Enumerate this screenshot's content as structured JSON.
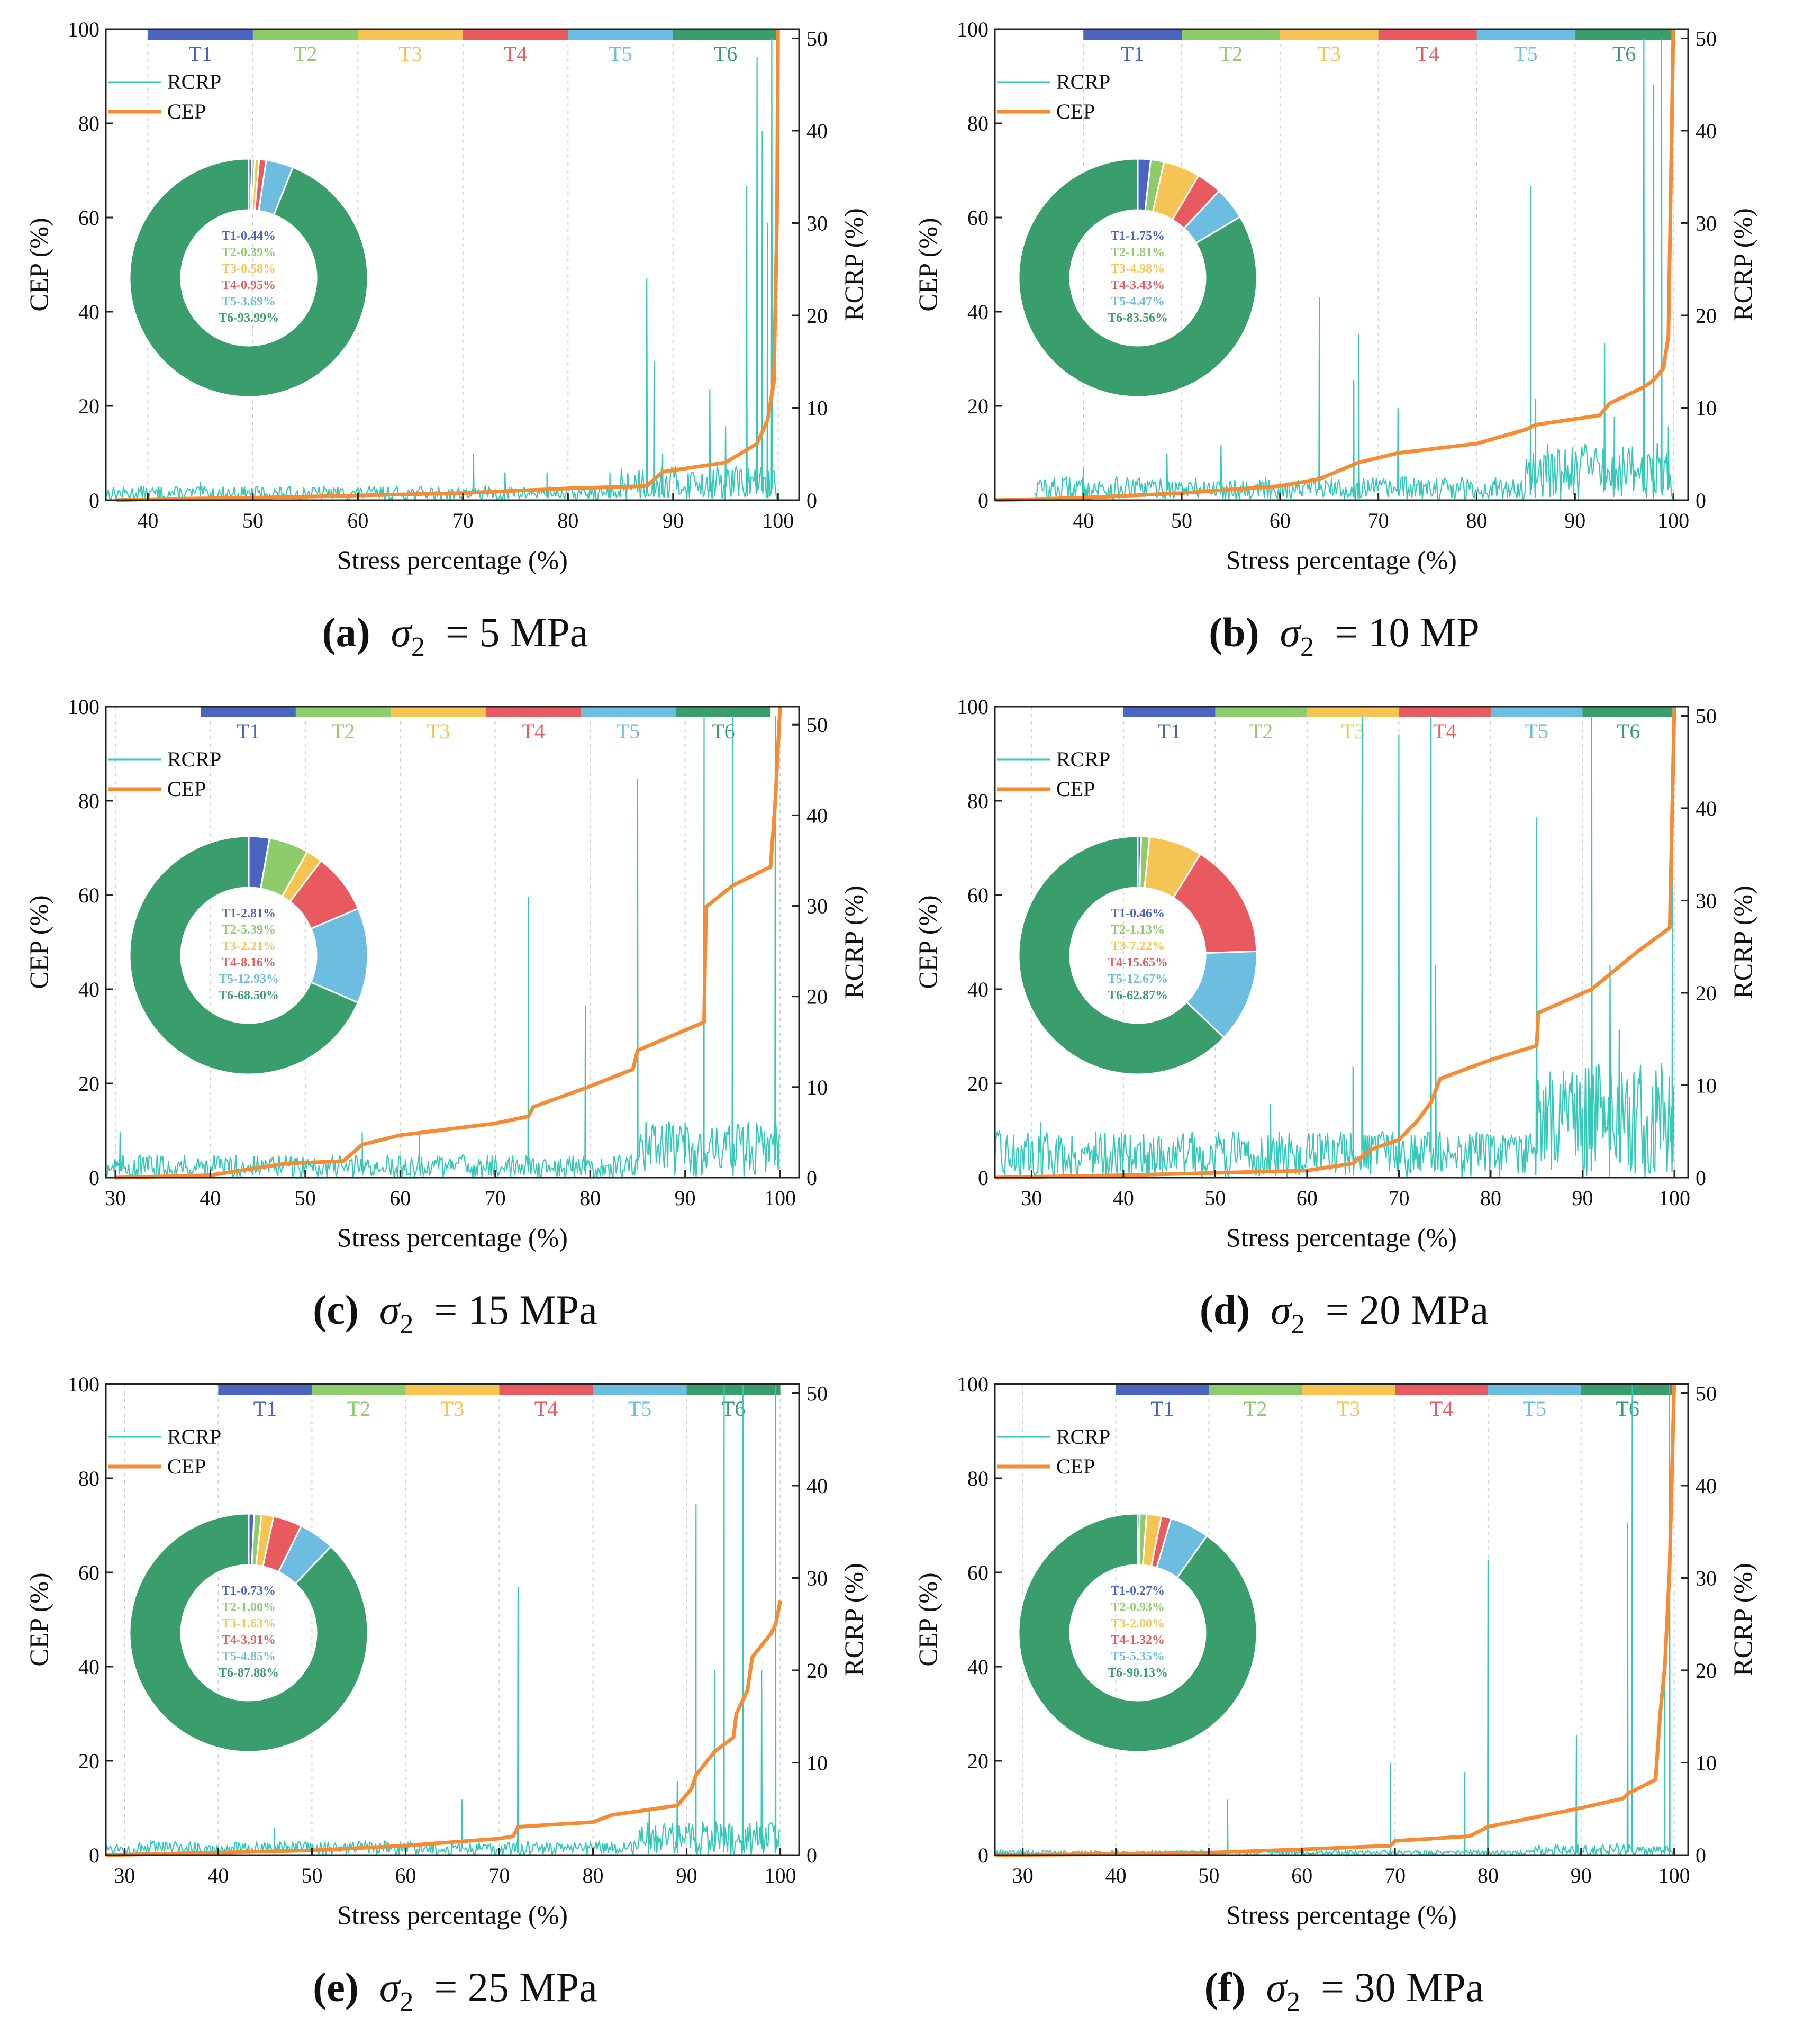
{
  "common": {
    "xlabel": "Stress percentage (%)",
    "ylabel_left": "CEP (%)",
    "ylabel_right": "RCRP (%)",
    "legend": [
      "RCRP",
      "CEP"
    ],
    "stage_labels": [
      "T1",
      "T2",
      "T3",
      "T4",
      "T5",
      "T6"
    ],
    "caption_symbol": "σ",
    "caption_subscript": "2",
    "colors": {
      "T1": "#4a64c0",
      "T2": "#8ecb6a",
      "T3": "#f6c453",
      "T4": "#e85a5f",
      "T5": "#6dbde0",
      "T6": "#3a9e6c",
      "RCRP": "#35c9b7",
      "CEP": "#f78b34"
    }
  },
  "panels": [
    {
      "letter": "(a)",
      "caption_value": "= 5 MPa",
      "pie_labels": [
        "T1-0.44%",
        "T2-0.39%",
        "T3-0.58%",
        "T4-0.95%",
        "T5-3.69%",
        "T6-93.99%"
      ],
      "chart_data": {
        "type": "line",
        "title": "",
        "xlabel": "Stress percentage (%)",
        "ylabel": "CEP (%)",
        "ylabel2": "RCRP (%)",
        "xlim": [
          36,
          102
        ],
        "ylim": [
          0,
          100
        ],
        "y2lim": [
          0,
          51
        ],
        "xticks": [
          40,
          50,
          60,
          70,
          80,
          90,
          100
        ],
        "stage_bounds": [
          40,
          50,
          60,
          70,
          80,
          90,
          100
        ],
        "pie": {
          "labels": [
            "T1",
            "T2",
            "T3",
            "T4",
            "T5",
            "T6"
          ],
          "values": [
            0.44,
            0.39,
            0.58,
            0.95,
            3.69,
            93.99
          ]
        },
        "series": [
          {
            "name": "CEP",
            "axis": "left",
            "x": [
              37,
              40,
              50,
              60,
              70,
              80,
              87.5,
              89,
              95,
              98,
              99,
              99.6,
              99.9,
              100
            ],
            "y": [
              0,
              0.2,
              0.5,
              1,
              1.5,
              2.5,
              3,
              6,
              8,
              12,
              17,
              25,
              60,
              100
            ]
          },
          {
            "name": "RCRP",
            "axis": "right",
            "base_range": [
              0,
              1.5
            ],
            "spikes": [
              [
                41,
                1.5
              ],
              [
                45,
                2
              ],
              [
                71,
                5
              ],
              [
                74,
                3
              ],
              [
                78,
                3
              ],
              [
                84,
                3
              ],
              [
                87.5,
                24
              ],
              [
                88.2,
                15
              ],
              [
                89,
                5
              ],
              [
                93.5,
                12
              ],
              [
                95,
                8
              ],
              [
                97,
                34
              ],
              [
                98,
                48
              ],
              [
                98.5,
                40
              ],
              [
                99,
                30
              ],
              [
                99.4,
                50
              ]
            ]
          }
        ]
      }
    },
    {
      "letter": "(b)",
      "caption_value": "= 10 MP",
      "pie_labels": [
        "T1-1.75%",
        "T2-1.81%",
        "T3-4.98%",
        "T4-3.43%",
        "T5-4.47%",
        "T6-83.56%"
      ],
      "chart_data": {
        "type": "line",
        "title": "",
        "xlabel": "Stress percentage (%)",
        "ylabel": "CEP (%)",
        "ylabel2": "RCRP (%)",
        "xlim": [
          31,
          101.5
        ],
        "ylim": [
          0,
          100
        ],
        "y2lim": [
          0,
          51
        ],
        "xticks": [
          40,
          50,
          60,
          70,
          80,
          90,
          100
        ],
        "stage_bounds": [
          40,
          50,
          60,
          70,
          80,
          90,
          100
        ],
        "pie": {
          "labels": [
            "T1",
            "T2",
            "T3",
            "T4",
            "T5",
            "T6"
          ],
          "values": [
            1.75,
            1.81,
            4.98,
            3.43,
            4.47,
            83.56
          ]
        },
        "series": [
          {
            "name": "CEP",
            "axis": "left",
            "x": [
              31,
              40,
              50,
              60,
              64,
              68,
              72,
              80,
              85,
              86,
              92.5,
              93.5,
              97,
              98,
              99,
              99.5,
              100
            ],
            "y": [
              0,
              0.5,
              1.5,
              3,
              4.5,
              8,
              10,
              12,
              15,
              16,
              18,
              20.5,
              24,
              25.5,
              28,
              35,
              100
            ]
          },
          {
            "name": "RCRP",
            "axis": "right",
            "base_range": [
              0,
              2.5
            ],
            "spikes": [
              [
                40,
                3.5
              ],
              [
                48.5,
                5
              ],
              [
                54,
                6
              ],
              [
                64,
                22
              ],
              [
                67.5,
                13
              ],
              [
                68,
                18
              ],
              [
                72,
                10
              ],
              [
                85.5,
                34
              ],
              [
                86,
                11
              ],
              [
                93,
                17
              ],
              [
                94,
                9
              ],
              [
                97,
                50
              ],
              [
                98,
                45
              ],
              [
                98.8,
                50
              ],
              [
                99.5,
                8
              ]
            ]
          }
        ]
      }
    },
    {
      "letter": "(c)",
      "caption_value": "= 15 MPa",
      "pie_labels": [
        "T1-2.81%",
        "T2-5.39%",
        "T3-2.21%",
        "T4-8.16%",
        "T5-12.93%",
        "T6-68.50%"
      ],
      "chart_data": {
        "type": "line",
        "title": "",
        "xlabel": "Stress percentage (%)",
        "ylabel": "CEP (%)",
        "ylabel2": "RCRP (%)",
        "xlim": [
          29,
          102
        ],
        "ylim": [
          0,
          100
        ],
        "y2lim": [
          0,
          52
        ],
        "xticks": [
          30,
          40,
          50,
          60,
          70,
          80,
          90,
          100
        ],
        "stage_bounds": [
          39,
          49,
          59,
          69,
          79,
          89,
          99
        ],
        "pie": {
          "labels": [
            "T1",
            "T2",
            "T3",
            "T4",
            "T5",
            "T6"
          ],
          "values": [
            2.81,
            5.39,
            2.21,
            8.16,
            12.93,
            68.5
          ]
        },
        "series": [
          {
            "name": "CEP",
            "axis": "left",
            "x": [
              30,
              40,
              48,
              54,
              56,
              60,
              70,
              73.5,
              74,
              79.5,
              84.5,
              85,
              92,
              92.2,
              95,
              99,
              99.5,
              100
            ],
            "y": [
              0,
              0.5,
              3,
              3.5,
              7,
              9,
              11.5,
              13,
              15,
              19,
              23,
              27,
              33,
              57.5,
              62,
              66,
              80,
              100
            ]
          },
          {
            "name": "RCRP",
            "axis": "right",
            "base_range": [
              0,
              2.5
            ],
            "spikes": [
              [
                30.5,
                5
              ],
              [
                32,
                2
              ],
              [
                56,
                5
              ],
              [
                62,
                5
              ],
              [
                73.5,
                31
              ],
              [
                79.5,
                19
              ],
              [
                85,
                44
              ],
              [
                90,
                6
              ],
              [
                92,
                51
              ],
              [
                95,
                51
              ],
              [
                99.5,
                51
              ]
            ]
          }
        ]
      }
    },
    {
      "letter": "(d)",
      "caption_value": "= 20 MPa",
      "pie_labels": [
        "T1-0.46%",
        "T2-1.13%",
        "T3-7.22%",
        "T4-15.65%",
        "T5-12.67%",
        "T6-62.87%"
      ],
      "chart_data": {
        "type": "line",
        "title": "",
        "xlabel": "Stress percentage (%)",
        "ylabel": "CEP (%)",
        "ylabel2": "RCRP (%)",
        "xlim": [
          26,
          101.5
        ],
        "ylim": [
          0,
          100
        ],
        "y2lim": [
          0,
          51
        ],
        "xticks": [
          30,
          40,
          50,
          60,
          70,
          80,
          90,
          100
        ],
        "stage_bounds": [
          40,
          50,
          60,
          70,
          80,
          90,
          100
        ],
        "pie": {
          "labels": [
            "T1",
            "T2",
            "T3",
            "T4",
            "T5",
            "T6"
          ],
          "values": [
            0.46,
            1.13,
            7.22,
            15.65,
            12.67,
            62.87
          ]
        },
        "series": [
          {
            "name": "CEP",
            "axis": "left",
            "x": [
              26,
              40,
              50,
              60,
              65,
              67,
              70,
              72,
              73.5,
              74.5,
              80,
              85,
              85.2,
              91,
              96,
              99.5,
              100
            ],
            "y": [
              0,
              0.5,
              1,
              1.5,
              3,
              6,
              8,
              12,
              16,
              21,
              25,
              28,
              35,
              40,
              48,
              53,
              100
            ]
          },
          {
            "name": "RCRP",
            "axis": "right",
            "base_range": [
              0,
              5
            ],
            "spikes": [
              [
                31,
                6
              ],
              [
                37,
                5
              ],
              [
                56,
                8
              ],
              [
                65,
                12
              ],
              [
                66,
                50
              ],
              [
                70,
                48
              ],
              [
                73.5,
                50
              ],
              [
                74,
                23
              ],
              [
                85,
                39
              ],
              [
                91,
                50
              ],
              [
                93,
                23
              ],
              [
                94,
                16
              ],
              [
                99.8,
                51
              ]
            ]
          }
        ]
      }
    },
    {
      "letter": "(e)",
      "caption_value": "= 25 MPa",
      "pie_labels": [
        "T1-0.73%",
        "T2-1.00%",
        "T3-1.63%",
        "T4-3.91%",
        "T5-4.85%",
        "T6-87.88%"
      ],
      "chart_data": {
        "type": "line",
        "title": "",
        "xlabel": "Stress percentage (%)",
        "ylabel": "CEP (%)",
        "ylabel2": "RCRP (%)",
        "xlim": [
          28,
          102
        ],
        "ylim": [
          0,
          100
        ],
        "y2lim": [
          0,
          51
        ],
        "xticks": [
          30,
          40,
          50,
          60,
          70,
          80,
          90,
          100
        ],
        "stage_bounds": [
          40,
          50,
          60,
          70,
          80,
          90,
          100
        ],
        "pie": {
          "labels": [
            "T1",
            "T2",
            "T3",
            "T4",
            "T5",
            "T6"
          ],
          "values": [
            0.73,
            1.0,
            1.63,
            3.91,
            4.85,
            87.88
          ]
        },
        "series": [
          {
            "name": "CEP",
            "axis": "left",
            "x": [
              28,
              40,
              50,
              60,
              70,
              71.5,
              72,
              80,
              82,
              89,
              90.5,
              91,
              93,
              95,
              95.3,
              96.5,
              97,
              99,
              99.5,
              100
            ],
            "y": [
              0,
              0.5,
              1,
              2,
              3.5,
              4,
              6,
              7,
              8.5,
              10.5,
              14,
              17,
              22,
              25,
              30,
              35,
              42,
              47,
              49,
              54
            ]
          },
          {
            "name": "RCRP",
            "axis": "right",
            "base_range": [
              0,
              1.5
            ],
            "spikes": [
              [
                46,
                3
              ],
              [
                66,
                6
              ],
              [
                72,
                29
              ],
              [
                86,
                5
              ],
              [
                89,
                8
              ],
              [
                91,
                38
              ],
              [
                93,
                20
              ],
              [
                94,
                51
              ],
              [
                96,
                51
              ],
              [
                98,
                20
              ],
              [
                99.5,
                51
              ]
            ]
          }
        ]
      }
    },
    {
      "letter": "(f)",
      "caption_value": "= 30 MPa",
      "pie_labels": [
        "T1-0.27%",
        "T2-0.93%",
        "T3-2.00%",
        "T4-1.32%",
        "T5-5.35%",
        "T6-90.13%"
      ],
      "chart_data": {
        "type": "line",
        "title": "",
        "xlabel": "Stress percentage (%)",
        "ylabel": "CEP (%)",
        "ylabel2": "RCRP (%)",
        "xlim": [
          27,
          101.5
        ],
        "ylim": [
          0,
          100
        ],
        "y2lim": [
          0,
          51
        ],
        "xticks": [
          30,
          40,
          50,
          60,
          70,
          80,
          90,
          100
        ],
        "stage_bounds": [
          40,
          50,
          60,
          70,
          80,
          90,
          100
        ],
        "pie": {
          "labels": [
            "T1",
            "T2",
            "T3",
            "T4",
            "T5",
            "T6"
          ],
          "values": [
            0.27,
            0.93,
            2.0,
            1.32,
            5.35,
            90.13
          ]
        },
        "series": [
          {
            "name": "CEP",
            "axis": "left",
            "x": [
              27,
              40,
              50,
              60,
              69.5,
              70,
              78,
              80,
              85,
              90,
              94.5,
              95,
              98,
              98.5,
              99,
              99.5,
              100
            ],
            "y": [
              0,
              0.2,
              0.5,
              1.2,
              2,
              3,
              4,
              6,
              8,
              10,
              12,
              13,
              16,
              30,
              40,
              60,
              100
            ]
          },
          {
            "name": "RCRP",
            "axis": "right",
            "base_range": [
              0,
              0.5
            ],
            "spikes": [
              [
                52,
                6
              ],
              [
                69.5,
                10
              ],
              [
                77.5,
                9
              ],
              [
                80,
                32
              ],
              [
                89.5,
                13
              ],
              [
                95,
                36
              ],
              [
                95.5,
                51
              ],
              [
                99,
                20
              ],
              [
                99.5,
                51
              ]
            ]
          }
        ]
      }
    }
  ]
}
